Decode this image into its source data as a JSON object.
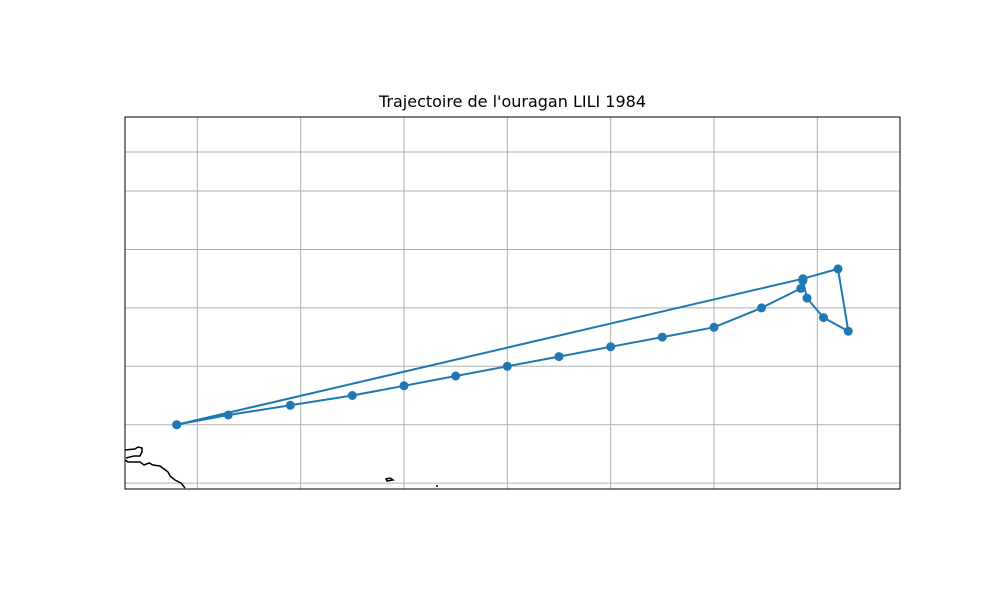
{
  "title": "Trajectoire de l'ouragan LILI 1984",
  "colors": {
    "track": "#1f77b4",
    "grid": "#b0b0b0",
    "coast": "#000000",
    "frame": "#000000"
  },
  "map_extent": {
    "lon": [
      -66,
      -28.5
    ],
    "lat": [
      20.2,
      39.3
    ]
  },
  "gridlines": {
    "lon": [
      -62.5,
      -57.5,
      -52.5,
      -47.5,
      -42.5,
      -37.5,
      -32.5
    ],
    "lat": [
      20.5,
      23.5,
      26.5,
      29.5,
      32.5,
      35.5,
      37.5
    ]
  },
  "track": [
    {
      "lon": -63.5,
      "lat": 23.5
    },
    {
      "lon": -61.0,
      "lat": 24.0
    },
    {
      "lon": -58.0,
      "lat": 24.5
    },
    {
      "lon": -55.0,
      "lat": 25.0
    },
    {
      "lon": -52.5,
      "lat": 25.5
    },
    {
      "lon": -50.0,
      "lat": 26.0
    },
    {
      "lon": -47.5,
      "lat": 26.5
    },
    {
      "lon": -45.0,
      "lat": 27.0
    },
    {
      "lon": -42.5,
      "lat": 27.5
    },
    {
      "lon": -40.0,
      "lat": 28.0
    },
    {
      "lon": -37.5,
      "lat": 28.5
    },
    {
      "lon": -35.2,
      "lat": 29.5
    },
    {
      "lon": -33.3,
      "lat": 30.5
    },
    {
      "lon": -33.2,
      "lat": 30.9
    },
    {
      "lon": -33.0,
      "lat": 30.0
    },
    {
      "lon": -32.2,
      "lat": 29.0
    },
    {
      "lon": -31.0,
      "lat": 28.3
    },
    {
      "lon": -31.5,
      "lat": 31.5
    },
    {
      "lon": -33.2,
      "lat": 31.0
    },
    {
      "lon": -63.5,
      "lat": 23.5
    }
  ]
}
